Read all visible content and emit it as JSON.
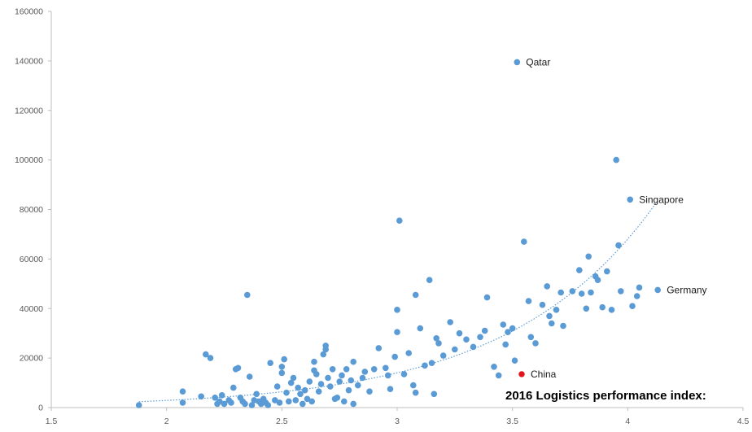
{
  "chart_data": {
    "type": "scatter",
    "caption": "2016 Logistics performance index:",
    "xlim": [
      1.5,
      4.5
    ],
    "ylim": [
      0,
      160000
    ],
    "x_ticks": [
      "1.5",
      "2",
      "2.5",
      "3",
      "3.5",
      "4",
      "4.5"
    ],
    "y_ticks": [
      "0",
      "20000",
      "40000",
      "60000",
      "80000",
      "100000",
      "120000",
      "140000",
      "160000"
    ],
    "grid": false,
    "trendline": {
      "style": "dotted",
      "kind": "exponential",
      "x_range": [
        1.88,
        4.13
      ]
    },
    "colors": {
      "point": "#5b9bd5",
      "highlight": "#e0161c",
      "trendline": "#5b9bd5",
      "axis": "#bfbfbf"
    },
    "annotations": [
      {
        "label": "Qatar",
        "x": 3.52,
        "y": 139500
      },
      {
        "label": "Singapore",
        "x": 4.01,
        "y": 84000
      },
      {
        "label": "Germany",
        "x": 4.13,
        "y": 47500
      },
      {
        "label": "China",
        "x": 3.54,
        "y": 13500
      }
    ],
    "highlight": {
      "label": "China",
      "x": 3.54,
      "y": 13500
    },
    "points": [
      [
        1.88,
        1000
      ],
      [
        2.07,
        2000
      ],
      [
        2.07,
        6500
      ],
      [
        2.15,
        4500
      ],
      [
        2.17,
        21500
      ],
      [
        2.19,
        20000
      ],
      [
        2.21,
        4000
      ],
      [
        2.22,
        1500
      ],
      [
        2.23,
        2500
      ],
      [
        2.24,
        5000
      ],
      [
        2.25,
        1500
      ],
      [
        2.27,
        3000
      ],
      [
        2.28,
        2000
      ],
      [
        2.29,
        8000
      ],
      [
        2.3,
        15500
      ],
      [
        2.31,
        16000
      ],
      [
        2.32,
        4000
      ],
      [
        2.33,
        2500
      ],
      [
        2.34,
        1500
      ],
      [
        2.35,
        45500
      ],
      [
        2.36,
        12500
      ],
      [
        2.37,
        1000
      ],
      [
        2.38,
        3000
      ],
      [
        2.39,
        5500
      ],
      [
        2.4,
        2500
      ],
      [
        2.41,
        1500
      ],
      [
        2.42,
        3500
      ],
      [
        2.43,
        2000
      ],
      [
        2.44,
        1000
      ],
      [
        2.45,
        18000
      ],
      [
        2.47,
        3000
      ],
      [
        2.48,
        8500
      ],
      [
        2.49,
        2000
      ],
      [
        2.5,
        16500
      ],
      [
        2.5,
        14000
      ],
      [
        2.51,
        19500
      ],
      [
        2.52,
        6000
      ],
      [
        2.53,
        2500
      ],
      [
        2.54,
        10000
      ],
      [
        2.55,
        12000
      ],
      [
        2.56,
        3000
      ],
      [
        2.57,
        8000
      ],
      [
        2.58,
        5500
      ],
      [
        2.59,
        1500
      ],
      [
        2.6,
        7000
      ],
      [
        2.61,
        3500
      ],
      [
        2.62,
        10500
      ],
      [
        2.63,
        2500
      ],
      [
        2.64,
        18500
      ],
      [
        2.64,
        15000
      ],
      [
        2.65,
        13500
      ],
      [
        2.66,
        6500
      ],
      [
        2.67,
        9500
      ],
      [
        2.68,
        21500
      ],
      [
        2.69,
        25000
      ],
      [
        2.69,
        23500
      ],
      [
        2.7,
        12000
      ],
      [
        2.71,
        8500
      ],
      [
        2.72,
        15500
      ],
      [
        2.73,
        3500
      ],
      [
        2.74,
        4000
      ],
      [
        2.75,
        10500
      ],
      [
        2.76,
        13000
      ],
      [
        2.77,
        2500
      ],
      [
        2.78,
        15500
      ],
      [
        2.79,
        7000
      ],
      [
        2.8,
        11000
      ],
      [
        2.81,
        1500
      ],
      [
        2.81,
        18500
      ],
      [
        2.83,
        9000
      ],
      [
        2.85,
        12000
      ],
      [
        2.86,
        14500
      ],
      [
        2.88,
        6500
      ],
      [
        2.9,
        15500
      ],
      [
        2.92,
        24000
      ],
      [
        2.95,
        16000
      ],
      [
        2.96,
        13000
      ],
      [
        2.97,
        7500
      ],
      [
        2.99,
        20500
      ],
      [
        3.0,
        39500
      ],
      [
        3.0,
        30500
      ],
      [
        3.01,
        75500
      ],
      [
        3.03,
        13500
      ],
      [
        3.05,
        22000
      ],
      [
        3.07,
        9000
      ],
      [
        3.08,
        6000
      ],
      [
        3.08,
        45500
      ],
      [
        3.1,
        32000
      ],
      [
        3.12,
        17000
      ],
      [
        3.14,
        51500
      ],
      [
        3.15,
        18000
      ],
      [
        3.16,
        5500
      ],
      [
        3.17,
        28000
      ],
      [
        3.18,
        26000
      ],
      [
        3.2,
        21000
      ],
      [
        3.23,
        34500
      ],
      [
        3.25,
        23500
      ],
      [
        3.27,
        30000
      ],
      [
        3.3,
        27500
      ],
      [
        3.33,
        24500
      ],
      [
        3.36,
        28500
      ],
      [
        3.38,
        31000
      ],
      [
        3.39,
        44500
      ],
      [
        3.42,
        16500
      ],
      [
        3.44,
        13000
      ],
      [
        3.46,
        33500
      ],
      [
        3.47,
        25500
      ],
      [
        3.48,
        30500
      ],
      [
        3.5,
        32000
      ],
      [
        3.51,
        19000
      ],
      [
        3.52,
        139500
      ],
      [
        3.55,
        67000
      ],
      [
        3.57,
        43000
      ],
      [
        3.58,
        28500
      ],
      [
        3.6,
        26000
      ],
      [
        3.63,
        41500
      ],
      [
        3.65,
        49000
      ],
      [
        3.66,
        37000
      ],
      [
        3.67,
        34000
      ],
      [
        3.69,
        39500
      ],
      [
        3.71,
        46500
      ],
      [
        3.72,
        33000
      ],
      [
        3.76,
        47000
      ],
      [
        3.79,
        55500
      ],
      [
        3.8,
        46000
      ],
      [
        3.82,
        40000
      ],
      [
        3.83,
        61000
      ],
      [
        3.84,
        46500
      ],
      [
        3.86,
        53000
      ],
      [
        3.87,
        51500
      ],
      [
        3.89,
        40500
      ],
      [
        3.91,
        55000
      ],
      [
        3.93,
        39500
      ],
      [
        3.95,
        100000
      ],
      [
        3.96,
        65500
      ],
      [
        3.97,
        47000
      ],
      [
        4.01,
        84000
      ],
      [
        4.02,
        41000
      ],
      [
        4.04,
        45000
      ],
      [
        4.05,
        48500
      ],
      [
        4.13,
        47500
      ]
    ]
  }
}
